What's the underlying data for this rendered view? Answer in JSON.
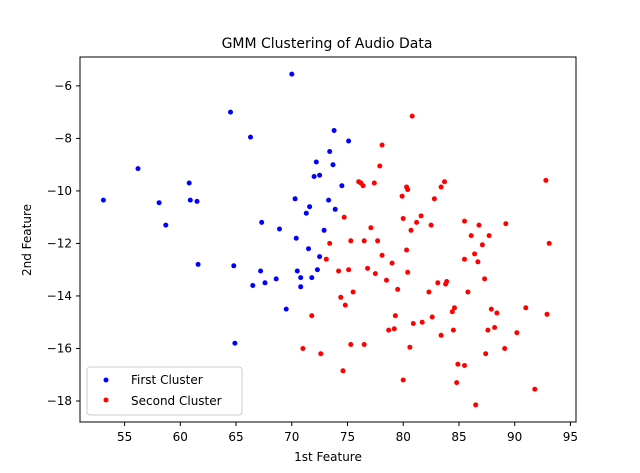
{
  "chart_data": {
    "type": "scatter",
    "title": "GMM Clustering of Audio Data",
    "xlabel": "1st Feature",
    "ylabel": "2nd Feature",
    "xlim": [
      51,
      95.5
    ],
    "ylim": [
      -18.8,
      -4.9
    ],
    "xticks": [
      55,
      60,
      65,
      70,
      75,
      80,
      85,
      90,
      95
    ],
    "yticks": [
      -6,
      -8,
      -10,
      -12,
      -14,
      -16,
      -18
    ],
    "grid": false,
    "legend_position": "bottom-left",
    "series": [
      {
        "name": "First Cluster",
        "color": "#0000ff",
        "points": [
          [
            53.1,
            -10.35
          ],
          [
            56.2,
            -9.15
          ],
          [
            58.1,
            -10.45
          ],
          [
            58.7,
            -11.3
          ],
          [
            60.8,
            -9.7
          ],
          [
            60.9,
            -10.35
          ],
          [
            61.5,
            -10.4
          ],
          [
            61.6,
            -12.8
          ],
          [
            64.5,
            -7.0
          ],
          [
            64.8,
            -12.85
          ],
          [
            64.9,
            -15.8
          ],
          [
            66.3,
            -7.95
          ],
          [
            66.5,
            -13.6
          ],
          [
            67.2,
            -13.05
          ],
          [
            67.3,
            -11.2
          ],
          [
            67.6,
            -13.5
          ],
          [
            68.6,
            -13.35
          ],
          [
            68.9,
            -11.45
          ],
          [
            69.5,
            -14.5
          ],
          [
            70.0,
            -5.55
          ],
          [
            70.3,
            -10.3
          ],
          [
            70.4,
            -11.8
          ],
          [
            70.5,
            -13.05
          ],
          [
            70.8,
            -13.3
          ],
          [
            70.8,
            -13.65
          ],
          [
            71.3,
            -10.85
          ],
          [
            71.5,
            -12.2
          ],
          [
            71.6,
            -10.6
          ],
          [
            71.8,
            -13.3
          ],
          [
            72.0,
            -9.45
          ],
          [
            72.2,
            -8.9
          ],
          [
            72.3,
            -13.0
          ],
          [
            72.5,
            -9.4
          ],
          [
            72.5,
            -12.5
          ],
          [
            72.9,
            -11.5
          ],
          [
            73.3,
            -10.35
          ],
          [
            73.4,
            -8.5
          ],
          [
            73.7,
            -9.0
          ],
          [
            73.8,
            -7.7
          ],
          [
            73.9,
            -10.7
          ],
          [
            74.5,
            -9.8
          ],
          [
            75.1,
            -8.1
          ]
        ]
      },
      {
        "name": "Second Cluster",
        "color": "#ff0000",
        "points": [
          [
            71.0,
            -16.0
          ],
          [
            71.8,
            -14.75
          ],
          [
            72.6,
            -16.2
          ],
          [
            73.1,
            -12.6
          ],
          [
            73.4,
            -12.0
          ],
          [
            74.2,
            -13.05
          ],
          [
            74.4,
            -14.05
          ],
          [
            74.6,
            -16.85
          ],
          [
            74.7,
            -11.0
          ],
          [
            74.8,
            -14.35
          ],
          [
            75.1,
            -13.0
          ],
          [
            75.3,
            -15.85
          ],
          [
            75.3,
            -11.9
          ],
          [
            75.5,
            -13.85
          ],
          [
            76.0,
            -9.65
          ],
          [
            76.2,
            -9.7
          ],
          [
            76.4,
            -9.8
          ],
          [
            76.5,
            -11.9
          ],
          [
            76.5,
            -15.85
          ],
          [
            76.8,
            -12.95
          ],
          [
            77.1,
            -11.4
          ],
          [
            77.4,
            -9.7
          ],
          [
            77.5,
            -13.15
          ],
          [
            77.7,
            -11.9
          ],
          [
            77.9,
            -9.05
          ],
          [
            78.1,
            -8.25
          ],
          [
            78.1,
            -12.45
          ],
          [
            78.5,
            -13.4
          ],
          [
            78.7,
            -15.3
          ],
          [
            79.0,
            -12.75
          ],
          [
            79.2,
            -15.25
          ],
          [
            79.3,
            -14.75
          ],
          [
            79.5,
            -13.75
          ],
          [
            79.9,
            -10.2
          ],
          [
            80.0,
            -17.2
          ],
          [
            80.0,
            -11.05
          ],
          [
            80.3,
            -9.85
          ],
          [
            80.3,
            -12.25
          ],
          [
            80.4,
            -9.95
          ],
          [
            80.4,
            -13.1
          ],
          [
            80.6,
            -15.95
          ],
          [
            80.7,
            -11.5
          ],
          [
            80.8,
            -7.15
          ],
          [
            80.9,
            -15.05
          ],
          [
            81.2,
            -11.2
          ],
          [
            81.6,
            -10.95
          ],
          [
            81.7,
            -15.0
          ],
          [
            82.3,
            -13.85
          ],
          [
            82.5,
            -11.3
          ],
          [
            82.6,
            -14.8
          ],
          [
            82.8,
            -10.3
          ],
          [
            83.1,
            -13.5
          ],
          [
            83.4,
            -15.5
          ],
          [
            83.4,
            -9.85
          ],
          [
            83.7,
            -9.65
          ],
          [
            83.8,
            -13.55
          ],
          [
            83.9,
            -13.45
          ],
          [
            84.4,
            -14.6
          ],
          [
            84.5,
            -15.3
          ],
          [
            84.6,
            -14.45
          ],
          [
            84.8,
            -17.3
          ],
          [
            84.9,
            -16.6
          ],
          [
            85.5,
            -11.15
          ],
          [
            85.5,
            -12.6
          ],
          [
            85.5,
            -16.65
          ],
          [
            85.8,
            -13.85
          ],
          [
            86.1,
            -11.7
          ],
          [
            86.4,
            -12.4
          ],
          [
            86.5,
            -18.15
          ],
          [
            86.7,
            -12.7
          ],
          [
            86.8,
            -11.3
          ],
          [
            87.1,
            -12.05
          ],
          [
            87.3,
            -13.35
          ],
          [
            87.4,
            -16.2
          ],
          [
            87.6,
            -15.3
          ],
          [
            87.7,
            -11.7
          ],
          [
            87.9,
            -14.5
          ],
          [
            88.2,
            -15.2
          ],
          [
            88.4,
            -14.65
          ],
          [
            89.1,
            -16.0
          ],
          [
            89.2,
            -11.25
          ],
          [
            90.2,
            -15.4
          ],
          [
            91.0,
            -14.45
          ],
          [
            91.8,
            -17.55
          ],
          [
            92.8,
            -9.6
          ],
          [
            92.9,
            -14.7
          ],
          [
            93.1,
            -12.0
          ]
        ]
      }
    ]
  }
}
